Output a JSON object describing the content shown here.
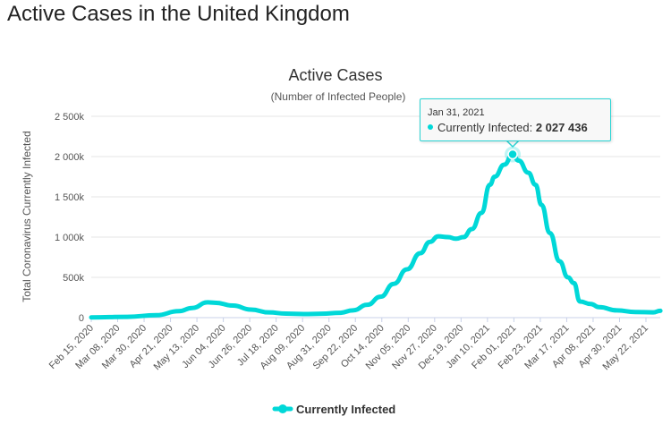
{
  "page_title": "Active Cases in the United Kingdom",
  "chart_data": {
    "type": "line",
    "title": "Active Cases",
    "subtitle": "(Number of Infected People)",
    "ylabel": "Total Coronavirus Currently Infected",
    "xlabel": "",
    "ylim": [
      0,
      2500000
    ],
    "yticks": [
      0,
      500000,
      1000000,
      1500000,
      2000000,
      2500000
    ],
    "ytick_labels": [
      "0",
      "500k",
      "1 000k",
      "1 500k",
      "2 000k",
      "2 500k"
    ],
    "xtick_labels": [
      "Feb 15, 2020",
      "Mar 08, 2020",
      "Mar 30, 2020",
      "Apr 21, 2020",
      "May 13, 2020",
      "Jun 04, 2020",
      "Jun 26, 2020",
      "Jul 18, 2020",
      "Aug 09, 2020",
      "Aug 31, 2020",
      "Sep 22, 2020",
      "Oct 14, 2020",
      "Nov 05, 2020",
      "Nov 27, 2020",
      "Dec 19, 2020",
      "Jan 10, 2021",
      "Feb 01, 2021",
      "Feb 23, 2021",
      "Mar 17, 2021",
      "Apr 08, 2021",
      "Apr 30, 2021",
      "May 22, 2021"
    ],
    "x_unit": "days since Feb 15, 2020",
    "grid": true,
    "legend_position": "bottom-center",
    "series": [
      {
        "name": "Currently Infected",
        "color": "#00d8d8",
        "x": [
          0,
          30,
          54,
          73,
          84,
          97,
          103,
          118,
          133,
          148,
          162,
          177,
          192,
          207,
          218,
          230,
          241,
          252,
          263,
          274,
          282,
          289,
          297,
          304,
          310,
          317,
          325,
          332,
          336,
          344,
          351,
          356,
          364,
          370,
          375,
          382,
          390,
          397,
          402,
          407,
          416,
          423,
          438,
          453,
          468,
          474
        ],
        "values": [
          3000,
          10000,
          30000,
          80000,
          120000,
          190000,
          185000,
          150000,
          100000,
          65000,
          50000,
          45000,
          48000,
          60000,
          90000,
          160000,
          260000,
          420000,
          600000,
          800000,
          940000,
          1010000,
          1000000,
          980000,
          1000000,
          1100000,
          1300000,
          1650000,
          1750000,
          1900000,
          2027436,
          1950000,
          1800000,
          1650000,
          1400000,
          1050000,
          700000,
          500000,
          430000,
          200000,
          170000,
          130000,
          90000,
          70000,
          65000,
          85000
        ]
      }
    ],
    "tooltip": {
      "date": "Jan 31, 2021",
      "label": "Currently Infected:",
      "value": "2 027 436"
    }
  }
}
